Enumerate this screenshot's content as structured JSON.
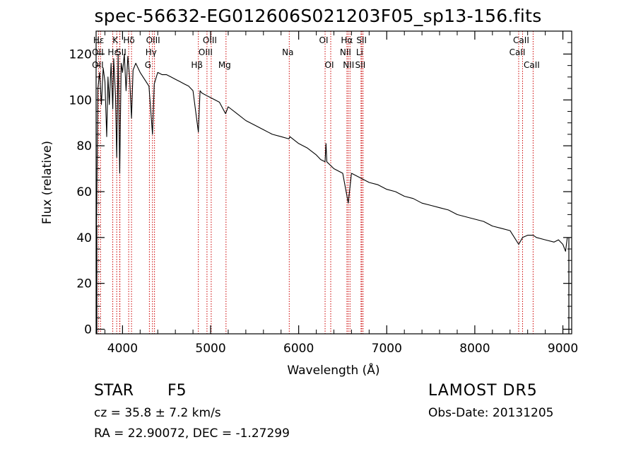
{
  "chart_data": {
    "type": "line",
    "title": "spec-56632-EG012606S021203F05_sp13-156.fits",
    "xlabel": "Wavelength (Å)",
    "ylabel": "Flux (relative)",
    "xlim": [
      3700,
      9100
    ],
    "ylim": [
      -2,
      130
    ],
    "xticks": [
      4000,
      5000,
      6000,
      7000,
      8000,
      9000
    ],
    "yticks": [
      0,
      20,
      40,
      60,
      80,
      100,
      120
    ],
    "grid": false,
    "line_color": "#000000",
    "marker_color": "#cc0000",
    "series": [
      {
        "x": [
          3705,
          3720,
          3740,
          3760,
          3780,
          3800,
          3820,
          3835,
          3850,
          3870,
          3889,
          3900,
          3920,
          3934,
          3950,
          3968,
          3985,
          4000,
          4020,
          4040,
          4060,
          4080,
          4102,
          4120,
          4150,
          4200,
          4250,
          4300,
          4340,
          4360,
          4400,
          4450,
          4500,
          4550,
          4600,
          4650,
          4700,
          4750,
          4800,
          4861,
          4880,
          4900,
          4950,
          5000,
          5100,
          5170,
          5200,
          5300,
          5400,
          5500,
          5600,
          5700,
          5800,
          5890,
          5900,
          6000,
          6100,
          6200,
          6250,
          6300,
          6310,
          6320,
          6400,
          6500,
          6563,
          6600,
          6700,
          6800,
          6900,
          7000,
          7100,
          7200,
          7300,
          7400,
          7500,
          7600,
          7700,
          7800,
          7900,
          8000,
          8100,
          8200,
          8300,
          8400,
          8498,
          8542,
          8600,
          8662,
          8700,
          8800,
          8900,
          8950,
          9000,
          9030,
          9050
        ],
        "y": [
          45,
          105,
          112,
          98,
          114,
          108,
          84,
          110,
          98,
          116,
          96,
          118,
          102,
          75,
          120,
          68,
          116,
          112,
          120,
          104,
          119,
          110,
          92,
          113,
          116,
          112,
          109,
          106,
          85,
          107,
          112,
          111,
          111,
          110,
          109,
          108,
          107,
          106,
          104,
          86,
          104,
          103,
          102,
          101,
          99,
          94,
          97,
          94,
          91,
          89,
          87,
          85,
          84,
          83,
          84,
          81,
          79,
          76,
          74,
          73,
          81,
          73,
          70,
          68,
          55,
          68,
          66,
          64,
          63,
          61,
          60,
          58,
          57,
          55,
          54,
          53,
          52,
          50,
          49,
          48,
          47,
          45,
          44,
          43,
          37,
          40,
          41,
          41,
          40,
          39,
          38,
          39,
          37,
          34,
          40
        ]
      }
    ],
    "lines": [
      {
        "name": "Hε",
        "x": 3750
      },
      {
        "name": "OII",
        "x": 3727
      },
      {
        "name": "Hζ",
        "x": 3889
      },
      {
        "name": "Hε",
        "x": 3970
      },
      {
        "name": "K",
        "x": 3934
      },
      {
        "name": "H",
        "x": 3968
      },
      {
        "name": "SII",
        "x": 4070
      },
      {
        "name": "Hδ",
        "x": 4102
      },
      {
        "name": "Hγ",
        "x": 4340
      },
      {
        "name": "G",
        "x": 4305
      },
      {
        "name": "OIII",
        "x": 4363
      },
      {
        "name": "Hβ",
        "x": 4861
      },
      {
        "name": "OIII",
        "x": 4959
      },
      {
        "name": "OIII",
        "x": 5007
      },
      {
        "name": "Mg",
        "x": 5175
      },
      {
        "name": "Na",
        "x": 5893
      },
      {
        "name": "OI",
        "x": 6300
      },
      {
        "name": "OI",
        "x": 6364
      },
      {
        "name": "NII",
        "x": 6548
      },
      {
        "name": "Hα",
        "x": 6563
      },
      {
        "name": "NII",
        "x": 6583
      },
      {
        "name": "Li",
        "x": 6708
      },
      {
        "name": "SII",
        "x": 6716
      },
      {
        "name": "SII",
        "x": 6731
      },
      {
        "name": "CaII",
        "x": 8498
      },
      {
        "name": "CaII",
        "x": 8542
      },
      {
        "name": "CaII",
        "x": 8662
      }
    ],
    "line_labels": [
      {
        "text": "Hε",
        "x": 3745,
        "row": 1
      },
      {
        "text": "OII",
        "x": 3735,
        "row": 2
      },
      {
        "text": "OII",
        "x": 3735,
        "row": 3
      },
      {
        "text": "K",
        "x": 3934,
        "row": 1
      },
      {
        "text": "Hδ",
        "x": 4090,
        "row": 1
      },
      {
        "text": "Hε",
        "x": 3910,
        "row": 2
      },
      {
        "text": "SII",
        "x": 4000,
        "row": 2
      },
      {
        "text": "OIII",
        "x": 4363,
        "row": 1
      },
      {
        "text": "Hγ",
        "x": 4340,
        "row": 2
      },
      {
        "text": "G",
        "x": 4305,
        "row": 3
      },
      {
        "text": "OIII",
        "x": 5007,
        "row": 1
      },
      {
        "text": "OIII",
        "x": 4959,
        "row": 2
      },
      {
        "text": "Hβ",
        "x": 4861,
        "row": 3
      },
      {
        "text": "Mg",
        "x": 5175,
        "row": 3
      },
      {
        "text": "Na",
        "x": 5893,
        "row": 2
      },
      {
        "text": "OI",
        "x": 6300,
        "row": 1
      },
      {
        "text": "OI",
        "x": 6364,
        "row": 3
      },
      {
        "text": "Hα",
        "x": 6563,
        "row": 1
      },
      {
        "text": "SII",
        "x": 6731,
        "row": 1
      },
      {
        "text": "NII",
        "x": 6548,
        "row": 2
      },
      {
        "text": "Li",
        "x": 6708,
        "row": 2
      },
      {
        "text": "NII",
        "x": 6583,
        "row": 3
      },
      {
        "text": "SII",
        "x": 6716,
        "row": 3
      },
      {
        "text": "CaII",
        "x": 8542,
        "row": 1
      },
      {
        "text": "CaII",
        "x": 8498,
        "row": 2
      },
      {
        "text": "CaII",
        "x": 8662,
        "row": 3
      }
    ]
  },
  "info": {
    "object_class": "STAR",
    "subclass": "F5",
    "survey": "LAMOST DR5",
    "cz": "cz = 35.8 ± 7.2 km/s",
    "obs_date": "Obs-Date: 20131205",
    "radec": "RA =  22.90072, DEC =  -1.27299"
  }
}
